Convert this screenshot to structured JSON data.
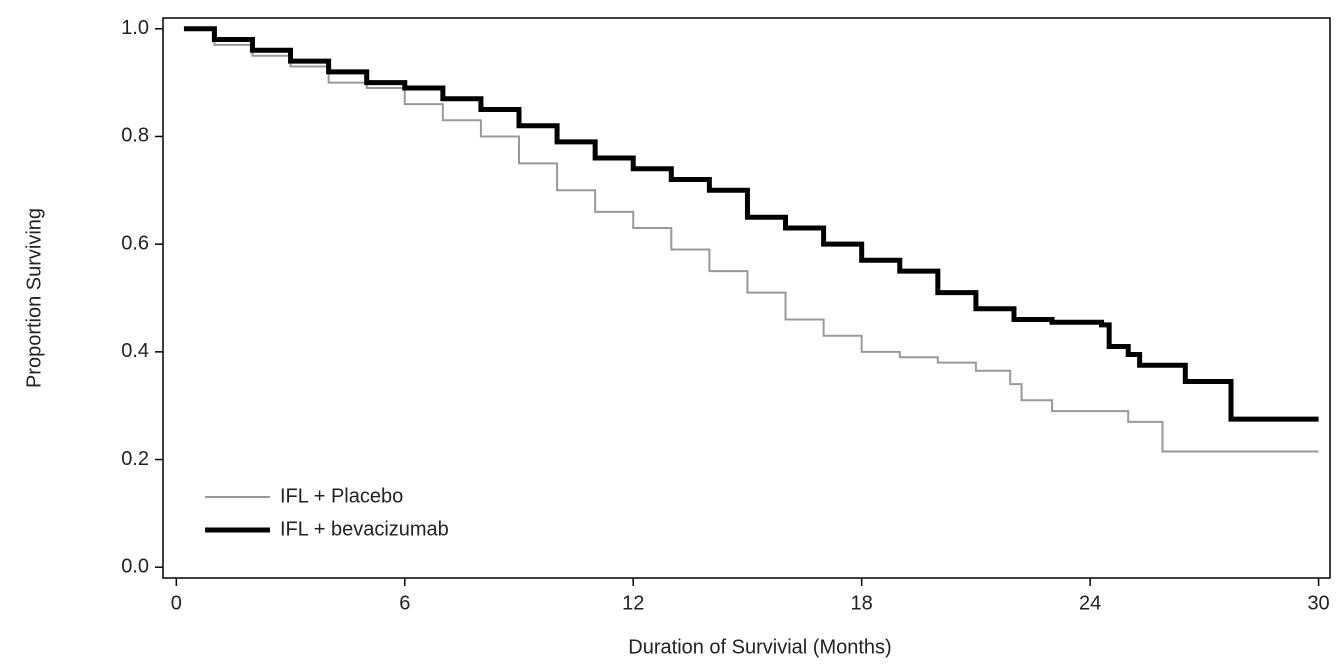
{
  "chart_data": {
    "type": "line",
    "step": "post",
    "x_label": "Duration of Survivial (Months)",
    "y_label": "Proportion Surviving",
    "xlim": [
      -0.35,
      30.3
    ],
    "ylim": [
      -0.02,
      1.02
    ],
    "xticks": [
      0,
      6,
      12,
      18,
      24,
      30
    ],
    "yticks": [
      {
        "value": 0,
        "label": "0.0"
      },
      0.2,
      0.4,
      0.6,
      0.8,
      {
        "value": 1,
        "label": "1.0"
      }
    ],
    "legend": "lower left",
    "series": [
      {
        "name": "IFL + Placebo",
        "color": "#999999",
        "width": 2,
        "x": [
          0.2,
          1,
          2,
          3,
          4,
          5,
          6,
          7,
          8,
          9,
          10,
          11,
          12,
          13,
          14,
          15,
          16,
          17,
          18,
          19,
          20,
          21,
          21.9,
          22.2,
          23,
          25,
          25.9,
          30
        ],
        "values": [
          1.0,
          0.97,
          0.95,
          0.93,
          0.9,
          0.89,
          0.86,
          0.83,
          0.8,
          0.75,
          0.7,
          0.66,
          0.63,
          0.59,
          0.55,
          0.51,
          0.46,
          0.43,
          0.4,
          0.39,
          0.38,
          0.365,
          0.34,
          0.31,
          0.29,
          0.27,
          0.215,
          0.215
        ]
      },
      {
        "name": "IFL + bevacizumab",
        "color": "#000000",
        "width": 5,
        "x": [
          0.2,
          1,
          2,
          3,
          4,
          5,
          6,
          7,
          8,
          9,
          10,
          11,
          12,
          13,
          14,
          15,
          16,
          17,
          18,
          19,
          20,
          21,
          22,
          23,
          24.3,
          24.5,
          25,
          25.3,
          26.5,
          27.7,
          30
        ],
        "values": [
          1.0,
          0.98,
          0.96,
          0.94,
          0.92,
          0.9,
          0.89,
          0.87,
          0.85,
          0.82,
          0.79,
          0.76,
          0.74,
          0.72,
          0.7,
          0.65,
          0.63,
          0.6,
          0.57,
          0.55,
          0.51,
          0.48,
          0.46,
          0.455,
          0.45,
          0.41,
          0.395,
          0.375,
          0.345,
          0.275,
          0.275
        ]
      }
    ]
  }
}
